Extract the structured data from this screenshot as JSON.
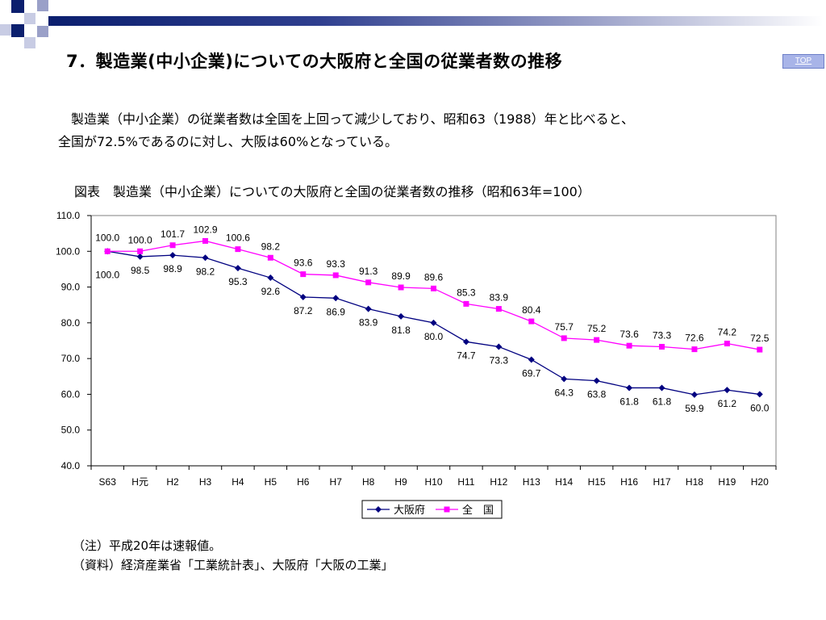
{
  "slide": {
    "title": "7．製造業(中小企業)についての大阪府と全国の従業者数の推移",
    "top_link": "TOP",
    "description_line1": "　製造業（中小企業）の従業者数は全国を上回って減少しており、昭和63（1988）年と比べると、",
    "description_line2": "全国が72.5%であるのに対し、大阪は60%となっている。",
    "figure_caption": "図表　製造業（中小企業）についての大阪府と全国の従業者数の推移（昭和63年=100）",
    "note": "（注）平成20年は速報値。",
    "source": "（資料）経済産業省「工業統計表」、大阪府「大阪の工業」"
  },
  "colors": {
    "osaka": "#000080",
    "national": "#ff00ff",
    "header_gradient_start": "#0b1f6e",
    "deco_square_dark": "#0b1f6e",
    "deco_square_light": "#9aa0c8"
  },
  "chart_data": {
    "type": "line",
    "categories": [
      "S63",
      "H元",
      "H2",
      "H3",
      "H4",
      "H5",
      "H6",
      "H7",
      "H8",
      "H9",
      "H10",
      "H11",
      "H12",
      "H13",
      "H14",
      "H15",
      "H16",
      "H17",
      "H18",
      "H19",
      "H20"
    ],
    "series": [
      {
        "name": "大阪府",
        "color": "#000080",
        "marker": "diamond",
        "values": [
          100.0,
          98.5,
          98.9,
          98.2,
          95.3,
          92.6,
          87.2,
          86.9,
          83.9,
          81.8,
          80.0,
          74.7,
          73.3,
          69.7,
          64.3,
          63.8,
          61.8,
          61.8,
          59.9,
          61.2,
          60.0
        ]
      },
      {
        "name": "全　国",
        "color": "#ff00ff",
        "marker": "square",
        "values": [
          100.0,
          100.0,
          101.7,
          102.9,
          100.6,
          98.2,
          93.6,
          93.3,
          91.3,
          89.9,
          89.6,
          85.3,
          83.9,
          80.4,
          75.7,
          75.2,
          73.6,
          73.3,
          72.6,
          74.2,
          72.5
        ]
      }
    ],
    "ylim": [
      40,
      110
    ],
    "yticks": [
      "40.0",
      "50.0",
      "60.0",
      "70.0",
      "80.0",
      "90.0",
      "100.0",
      "110.0"
    ],
    "grid": false,
    "legend_position": "bottom-center",
    "data_labels": true
  }
}
